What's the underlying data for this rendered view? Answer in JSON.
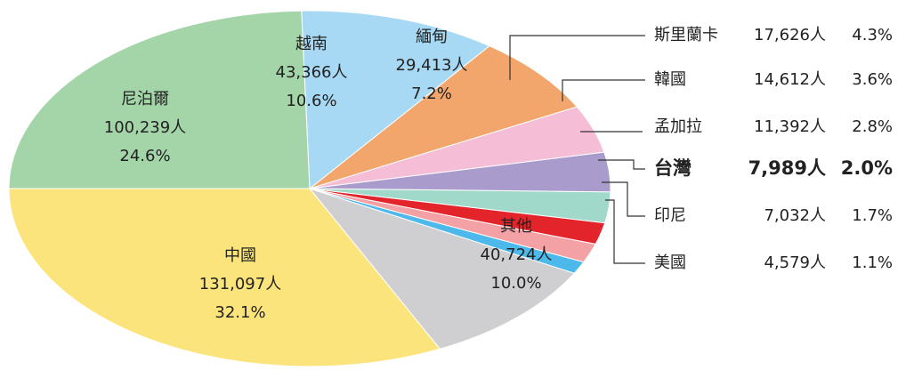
{
  "chart_data": {
    "type": "pie",
    "categories": [
      "中國",
      "其他",
      "美國",
      "印尼",
      "台灣",
      "孟加拉",
      "韓國",
      "斯里蘭卡",
      "緬甸",
      "越南",
      "尼泊爾"
    ],
    "values": [
      131097,
      40724,
      4579,
      7032,
      7989,
      11392,
      14612,
      17626,
      29413,
      43366,
      100239
    ],
    "value_labels": [
      "131,097人",
      "40,724人",
      "4,579人",
      "7,032人",
      "7,989人",
      "11,392人",
      "14,612人",
      "17,626人",
      "29,413人",
      "43,366人",
      "100,239人"
    ],
    "percentages": [
      32.1,
      10.0,
      1.1,
      1.7,
      2.0,
      2.8,
      3.6,
      4.3,
      7.2,
      10.6,
      24.6
    ],
    "percentage_labels": [
      "32.1%",
      "10.0%",
      "1.1%",
      "1.7%",
      "2.0%",
      "2.8%",
      "3.6%",
      "4.3%",
      "7.2%",
      "10.6%",
      "24.6%"
    ],
    "colors": [
      "#fce47c",
      "#cfcfd1",
      "#4cb9ea",
      "#f3a1a5",
      "#e3242b",
      "#a0d9ca",
      "#a99ccd",
      "#f6bdd7",
      "#f2a66b",
      "#a7d9f4",
      "#a4d5a9"
    ],
    "highlight": "台灣"
  }
}
